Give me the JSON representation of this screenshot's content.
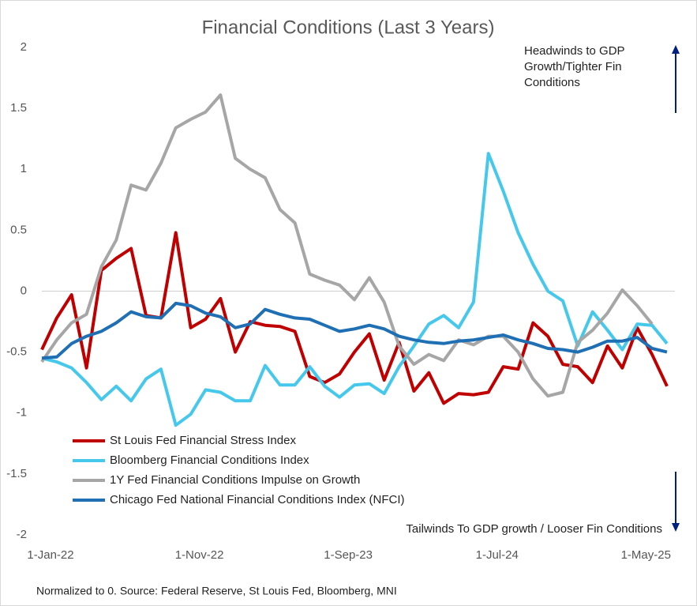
{
  "chart_data": {
    "type": "line",
    "title": "Financial Conditions (Last 3 Years)",
    "categories": [
      "1-Jan-22",
      null,
      null,
      null,
      null,
      null,
      null,
      null,
      null,
      null,
      "1-Nov-22",
      null,
      null,
      null,
      null,
      null,
      null,
      null,
      null,
      null,
      "1-Sep-23",
      null,
      null,
      null,
      null,
      null,
      null,
      null,
      null,
      null,
      "1-Jul-24",
      null,
      null,
      null,
      null,
      null,
      null,
      null,
      null,
      null,
      "1-May-25",
      null,
      null
    ],
    "series": [
      {
        "name": "St Louis Fed Financial Stress Index",
        "color": "#c00000",
        "values": [
          -0.48,
          -0.22,
          -0.03,
          -0.63,
          0.17,
          0.27,
          0.35,
          -0.2,
          -0.22,
          0.48,
          -0.3,
          -0.23,
          -0.06,
          -0.5,
          -0.25,
          -0.28,
          -0.29,
          -0.33,
          -0.7,
          -0.75,
          -0.68,
          -0.5,
          -0.35,
          -0.73,
          -0.42,
          -0.82,
          -0.67,
          -0.92,
          -0.84,
          -0.85,
          -0.83,
          -0.62,
          -0.64,
          -0.26,
          -0.37,
          -0.6,
          -0.62,
          -0.75,
          -0.45,
          -0.63,
          -0.3,
          -0.52,
          -0.78
        ]
      },
      {
        "name": "Bloomberg Financial Conditions Index",
        "color": "#45c8ec",
        "values": [
          -0.55,
          -0.58,
          -0.63,
          -0.75,
          -0.89,
          -0.78,
          -0.9,
          -0.72,
          -0.64,
          -1.1,
          -1.01,
          -0.81,
          -0.83,
          -0.9,
          -0.9,
          -0.61,
          -0.77,
          -0.77,
          -0.62,
          -0.78,
          -0.87,
          -0.77,
          -0.76,
          -0.84,
          -0.62,
          -0.45,
          -0.27,
          -0.2,
          -0.3,
          -0.09,
          1.13,
          0.82,
          0.48,
          0.22,
          0.0,
          -0.08,
          -0.45,
          -0.17,
          -0.32,
          -0.48,
          -0.27,
          -0.28,
          -0.43
        ]
      },
      {
        "name": "1Y Fed Financial Conditions Impulse on Growth",
        "color": "#a6a6a6",
        "values": [
          -0.58,
          -0.4,
          -0.26,
          -0.19,
          0.2,
          0.42,
          0.87,
          0.83,
          1.05,
          1.34,
          1.41,
          1.47,
          1.61,
          1.09,
          1.0,
          0.93,
          0.67,
          0.56,
          0.14,
          0.09,
          0.05,
          -0.07,
          0.11,
          -0.09,
          -0.45,
          -0.6,
          -0.52,
          -0.57,
          -0.4,
          -0.44,
          -0.37,
          -0.37,
          -0.5,
          -0.72,
          -0.86,
          -0.83,
          -0.42,
          -0.32,
          -0.18,
          0.01,
          -0.12,
          -0.27,
          null
        ]
      },
      {
        "name": "Chicago Fed National Financial Conditions Index (NFCI)",
        "color": "#1f6fb5",
        "values": [
          -0.55,
          -0.54,
          -0.43,
          -0.37,
          -0.33,
          -0.26,
          -0.17,
          -0.21,
          -0.22,
          -0.1,
          -0.12,
          -0.18,
          -0.21,
          -0.3,
          -0.27,
          -0.15,
          -0.19,
          -0.22,
          -0.23,
          -0.28,
          -0.33,
          -0.31,
          -0.28,
          -0.31,
          -0.37,
          -0.4,
          -0.42,
          -0.43,
          -0.41,
          -0.4,
          -0.38,
          -0.36,
          -0.4,
          -0.43,
          -0.47,
          -0.48,
          -0.5,
          -0.46,
          -0.41,
          -0.41,
          -0.38,
          -0.47,
          -0.5
        ]
      }
    ],
    "ylim": [
      -2,
      2
    ],
    "yticks": [
      -2,
      -1.5,
      -1,
      -0.5,
      0,
      0.5,
      1,
      1.5,
      2
    ],
    "zero_line": true,
    "annotations": {
      "headwinds": [
        "Headwinds to GDP",
        "Growth/Tighter Fin",
        "Conditions"
      ],
      "tailwinds": "Tailwinds To GDP growth / Looser Fin Conditions"
    },
    "footnote": "Normalized to 0. Source: Federal Reserve, St Louis Fed, Bloomberg, MNI"
  }
}
